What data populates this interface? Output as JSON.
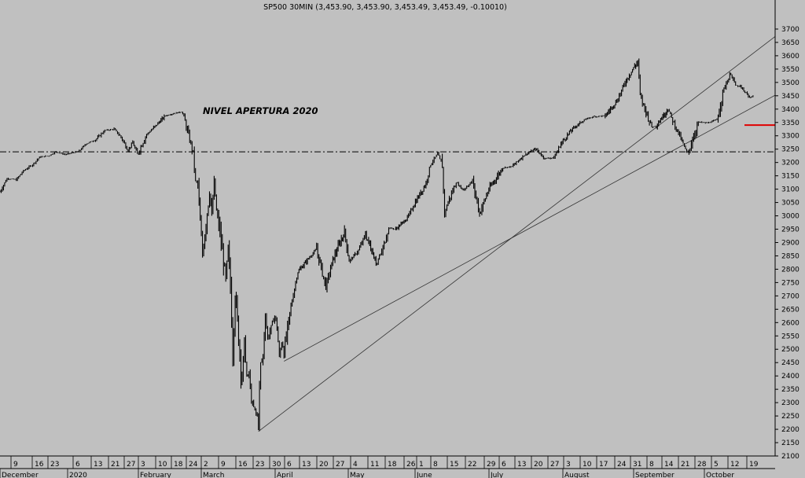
{
  "chart_data": {
    "type": "bar",
    "title": "SP500 30MIN (3,453.90, 3,453.90, 3,453.49, 3,453.49, -0.10010)",
    "annotation": "NIVEL APERTURA 2020",
    "reference_level": 3240,
    "red_marker_level": 3340,
    "ylim": [
      2100,
      3750
    ],
    "y_ticks": [
      2100,
      2150,
      2200,
      2250,
      2300,
      2350,
      2400,
      2450,
      2500,
      2550,
      2600,
      2650,
      2700,
      2750,
      2800,
      2850,
      2900,
      2950,
      3000,
      3050,
      3100,
      3150,
      3200,
      3250,
      3300,
      3350,
      3400,
      3450,
      3500,
      3550,
      3600,
      3650,
      3700
    ],
    "x_day_ticks": [
      "9",
      "16",
      "23",
      "6",
      "13",
      "21",
      "27",
      "3",
      "10",
      "18",
      "24",
      "2",
      "9",
      "16",
      "23",
      "30",
      "6",
      "13",
      "20",
      "27",
      "4",
      "11",
      "18",
      "26",
      "1",
      "8",
      "15",
      "22",
      "29",
      "6",
      "13",
      "20",
      "27",
      "3",
      "10",
      "17",
      "24",
      "31",
      "8",
      "14",
      "21",
      "28",
      "5",
      "12",
      "19"
    ],
    "x_month_labels": [
      "December",
      "2020",
      "February",
      "March",
      "April",
      "May",
      "June",
      "July",
      "August",
      "September",
      "October"
    ],
    "trendlines": [
      {
        "from": [
          "2020-03-23",
          2192
        ],
        "to": [
          "2020-10-31",
          3672
        ]
      },
      {
        "from": [
          "2020-04-03",
          2455
        ],
        "to": [
          "2020-10-31",
          3452
        ]
      }
    ],
    "series": [
      {
        "points": [
          [
            "2019-12-03",
            3090
          ],
          [
            "2019-12-06",
            3140
          ],
          [
            "2019-12-10",
            3135
          ],
          [
            "2019-12-13",
            3168
          ],
          [
            "2019-12-17",
            3192
          ],
          [
            "2019-12-20",
            3220
          ],
          [
            "2019-12-24",
            3225
          ],
          [
            "2019-12-27",
            3240
          ],
          [
            "2019-12-31",
            3230
          ],
          [
            "2020-01-03",
            3236
          ],
          [
            "2020-01-06",
            3243
          ],
          [
            "2020-01-09",
            3270
          ],
          [
            "2020-01-13",
            3285
          ],
          [
            "2020-01-17",
            3320
          ],
          [
            "2020-01-21",
            3325
          ],
          [
            "2020-01-24",
            3295
          ],
          [
            "2020-01-27",
            3245
          ],
          [
            "2020-01-29",
            3275
          ],
          [
            "2020-01-31",
            3230
          ],
          [
            "2020-02-04",
            3305
          ],
          [
            "2020-02-07",
            3330
          ],
          [
            "2020-02-12",
            3375
          ],
          [
            "2020-02-14",
            3380
          ],
          [
            "2020-02-19",
            3390
          ],
          [
            "2020-02-20",
            3375
          ],
          [
            "2020-02-21",
            3335
          ],
          [
            "2020-02-24",
            3235
          ],
          [
            "2020-02-25",
            3130
          ],
          [
            "2020-02-26",
            3120
          ],
          [
            "2020-02-27",
            2978
          ],
          [
            "2020-02-28",
            2860
          ],
          [
            "2020-03-02",
            3090
          ],
          [
            "2020-03-03",
            3000
          ],
          [
            "2020-03-04",
            3130
          ],
          [
            "2020-03-05",
            3020
          ],
          [
            "2020-03-06",
            2970
          ],
          [
            "2020-03-09",
            2760
          ],
          [
            "2020-03-10",
            2880
          ],
          [
            "2020-03-11",
            2740
          ],
          [
            "2020-03-12",
            2480
          ],
          [
            "2020-03-13",
            2710
          ],
          [
            "2020-03-16",
            2386
          ],
          [
            "2020-03-17",
            2530
          ],
          [
            "2020-03-18",
            2398
          ],
          [
            "2020-03-19",
            2410
          ],
          [
            "2020-03-20",
            2305
          ],
          [
            "2020-03-23",
            2237
          ],
          [
            "2020-03-24",
            2450
          ],
          [
            "2020-03-25",
            2475
          ],
          [
            "2020-03-26",
            2630
          ],
          [
            "2020-03-27",
            2540
          ],
          [
            "2020-03-30",
            2625
          ],
          [
            "2020-03-31",
            2585
          ],
          [
            "2020-04-01",
            2470
          ],
          [
            "2020-04-02",
            2527
          ],
          [
            "2020-04-03",
            2490
          ],
          [
            "2020-04-06",
            2660
          ],
          [
            "2020-04-08",
            2750
          ],
          [
            "2020-04-09",
            2790
          ],
          [
            "2020-04-14",
            2845
          ],
          [
            "2020-04-17",
            2875
          ],
          [
            "2020-04-21",
            2735
          ],
          [
            "2020-04-24",
            2835
          ],
          [
            "2020-04-29",
            2940
          ],
          [
            "2020-05-01",
            2830
          ],
          [
            "2020-05-05",
            2870
          ],
          [
            "2020-05-08",
            2930
          ],
          [
            "2020-05-13",
            2820
          ],
          [
            "2020-05-14",
            2852
          ],
          [
            "2020-05-15",
            2863
          ],
          [
            "2020-05-18",
            2955
          ],
          [
            "2020-05-21",
            2950
          ],
          [
            "2020-05-26",
            2992
          ],
          [
            "2020-05-29",
            3044
          ],
          [
            "2020-06-03",
            3122
          ],
          [
            "2020-06-05",
            3193
          ],
          [
            "2020-06-08",
            3232
          ],
          [
            "2020-06-10",
            3190
          ],
          [
            "2020-06-11",
            3002
          ],
          [
            "2020-06-12",
            3041
          ],
          [
            "2020-06-16",
            3125
          ],
          [
            "2020-06-19",
            3097
          ],
          [
            "2020-06-23",
            3131
          ],
          [
            "2020-06-26",
            3009
          ],
          [
            "2020-06-30",
            3100
          ],
          [
            "2020-07-06",
            3180
          ],
          [
            "2020-07-10",
            3185
          ],
          [
            "2020-07-15",
            3226
          ],
          [
            "2020-07-20",
            3251
          ],
          [
            "2020-07-24",
            3215
          ],
          [
            "2020-07-28",
            3218
          ],
          [
            "2020-07-31",
            3271
          ],
          [
            "2020-08-05",
            3327
          ],
          [
            "2020-08-10",
            3360
          ],
          [
            "2020-08-14",
            3372
          ],
          [
            "2020-08-19",
            3375
          ],
          [
            "2020-08-24",
            3431
          ],
          [
            "2020-08-28",
            3508
          ],
          [
            "2020-09-02",
            3580
          ],
          [
            "2020-09-03",
            3455
          ],
          [
            "2020-09-04",
            3426
          ],
          [
            "2020-09-08",
            3332
          ],
          [
            "2020-09-10",
            3339
          ],
          [
            "2020-09-15",
            3401
          ],
          [
            "2020-09-17",
            3357
          ],
          [
            "2020-09-21",
            3281
          ],
          [
            "2020-09-23",
            3237
          ],
          [
            "2020-09-24",
            3246
          ],
          [
            "2020-09-28",
            3351
          ],
          [
            "2020-10-02",
            3348
          ],
          [
            "2020-10-06",
            3360
          ],
          [
            "2020-10-09",
            3477
          ],
          [
            "2020-10-12",
            3534
          ],
          [
            "2020-10-14",
            3488
          ],
          [
            "2020-10-16",
            3484
          ],
          [
            "2020-10-20",
            3443
          ],
          [
            "2020-10-22",
            3453
          ]
        ]
      }
    ]
  }
}
